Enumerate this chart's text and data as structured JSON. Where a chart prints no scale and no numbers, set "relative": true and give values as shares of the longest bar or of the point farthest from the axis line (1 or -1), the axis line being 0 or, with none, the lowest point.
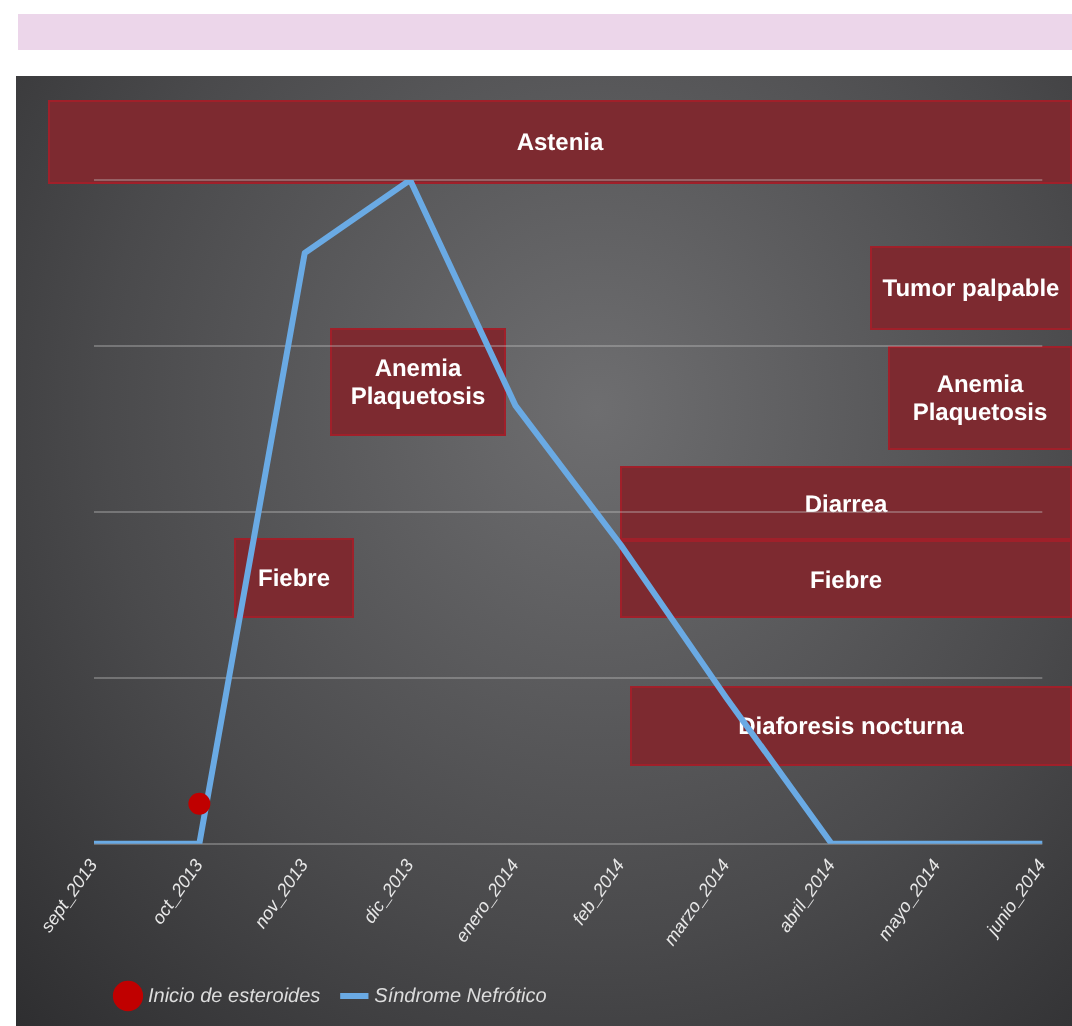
{
  "chart_data": {
    "type": "line",
    "relative": true,
    "grid": "y",
    "legend": "bottom",
    "categories": [
      "sept_2013",
      "oct_2013",
      "nov_2013",
      "dic_2013",
      "enero_2014",
      "feb_2014",
      "marzo_2014",
      "abril_2014",
      "mayo_2014",
      "junio_2014"
    ],
    "series": [
      {
        "name": "Síndrome Nefrótico",
        "type": "line",
        "color": "#6aaae4",
        "values": [
          0,
          0,
          0.89,
          1,
          0.66,
          0.45,
          0.22,
          0,
          0,
          0
        ]
      },
      {
        "name": "Inicio de esteroides",
        "type": "scatter",
        "color": "#c00000",
        "x": [
          "oct_2013"
        ],
        "values": [
          0.06
        ]
      }
    ],
    "annotations": [
      "Astenia",
      "Tumor palpable",
      "Anemia Plaquetosis",
      "Anemia Plaquetosis",
      "Diarrea",
      "Fiebre",
      "Fiebre",
      "Diaforesis nocturna"
    ]
  }
}
